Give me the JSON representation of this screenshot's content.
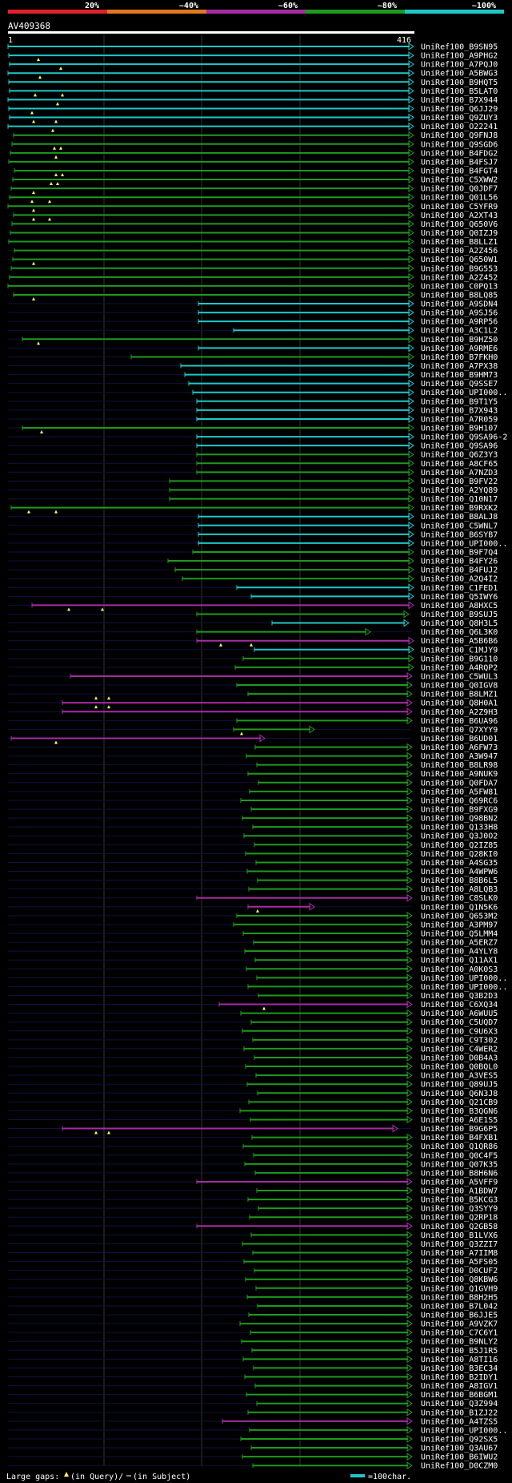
{
  "query_id": "AV409368",
  "scale": {
    "start": "1",
    "end": "416"
  },
  "identity_legend": [
    {
      "label": "20%",
      "color": "#e0202a"
    },
    {
      "label": "~40%",
      "color": "#e0781e"
    },
    {
      "label": "~60%",
      "color": "#a52ca5"
    },
    {
      "label": "~80%",
      "color": "#1e9a1e"
    },
    {
      "label": "~100%",
      "color": "#1ec8c8"
    }
  ],
  "footer": {
    "gaps_label": "Large gaps:",
    "query_gap_text": "(in Query)/",
    "subject_gap_text": "(in Subject)",
    "scale_text": "=100char."
  },
  "hits": [
    "UniRef100_B9SN95",
    "UniRef100_A9PHG2",
    "UniRef100_A7PQJ0",
    "UniRef100_A5BWG3",
    "UniRef100_B9HQT5",
    "UniRef100_B5LAT0",
    "UniRef100_B7X944",
    "UniRef100_Q6JJ29",
    "UniRef100_Q9ZUY3",
    "UniRef100_O22241",
    "UniRef100_Q9FNJ8",
    "UniRef100_Q9SGD6",
    "UniRef100_B4FDG2",
    "UniRef100_B4FSJ7",
    "UniRef100_B4FGT4",
    "UniRef100_C5XWW2",
    "UniRef100_Q0JDF7",
    "UniRef100_Q01L56",
    "UniRef100_C5YFR9",
    "UniRef100_A2XT43",
    "UniRef100_Q650V6",
    "UniRef100_Q0IZJ9",
    "UniRef100_B8LLZ1",
    "UniRef100_A2Z456",
    "UniRef100_Q650W1",
    "UniRef100_B9G553",
    "UniRef100_A2Z452",
    "UniRef100_C0PQ13",
    "UniRef100_B8LQ85",
    "UniRef100_A9SDN4",
    "UniRef100_A9SJ56",
    "UniRef100_A9RP56",
    "UniRef100_A3C1L2",
    "UniRef100_B9HZ50",
    "UniRef100_A9RME6",
    "UniRef100_B7FKH0",
    "UniRef100_A7PX38",
    "UniRef100_B9HM73",
    "UniRef100_Q9SSE7",
    "UniRef100_UPI000..",
    "UniRef100_B9T1Y5",
    "UniRef100_B7X943",
    "UniRef100_A7R059",
    "UniRef100_B9H107",
    "UniRef100_Q9SA96-2",
    "UniRef100_Q9SA96",
    "UniRef100_Q6Z3Y3",
    "UniRef100_A8CF65",
    "UniRef100_A7NZD3",
    "UniRef100_B9FV22",
    "UniRef100_A2YQ89",
    "UniRef100_Q10N17",
    "UniRef100_B9RXK2",
    "UniRef100_B8ALJ8",
    "UniRef100_C5WNL7",
    "UniRef100_B6SYB7",
    "UniRef100_UPI000..",
    "UniRef100_B9F7Q4",
    "UniRef100_B4FY26",
    "UniRef100_B4FUJ2",
    "UniRef100_A2Q4I2",
    "UniRef100_C1FED1",
    "UniRef100_Q5IWY6",
    "UniRef100_A8HXC5",
    "UniRef100_B9SUJ5",
    "UniRef100_Q8H3L5",
    "UniRef100_Q6L3K0",
    "UniRef100_A5B6B6",
    "UniRef100_C1MJY9",
    "UniRef100_B9G110",
    "UniRef100_A4RQP2",
    "UniRef100_C5WUL3",
    "UniRef100_Q0IGV8",
    "UniRef100_B8LMZ1",
    "UniRef100_Q8H0A1",
    "UniRef100_A2Z9H3",
    "UniRef100_B6UA96",
    "UniRef100_Q7XYY9",
    "UniRef100_B6UD01",
    "UniRef100_A6FW73",
    "UniRef100_A3W947",
    "UniRef100_B8LR98",
    "UniRef100_A9NUK9",
    "UniRef100_Q0FDA7",
    "UniRef100_A5FW81",
    "UniRef100_Q69RC6",
    "UniRef100_B9FXG9",
    "UniRef100_Q98BN2",
    "UniRef100_Q133H8",
    "UniRef100_Q3J0O2",
    "UniRef100_Q2IZ85",
    "UniRef100_Q28KI0",
    "UniRef100_A4SG35",
    "UniRef100_A4WPW6",
    "UniRef100_B8B6L5",
    "UniRef100_A8LQB3",
    "UniRef100_C8SLK0",
    "UniRef100_Q1N5K6",
    "UniRef100_Q653M2",
    "UniRef100_A3PM97",
    "UniRef100_Q5LMM4",
    "UniRef100_A5ERZ7",
    "UniRef100_A4YLY8",
    "UniRef100_Q11AX1",
    "UniRef100_A0K0S3",
    "UniRef100_UPI000..",
    "UniRef100_UPI000..",
    "UniRef100_Q3B2D3",
    "UniRef100_C6XQ34",
    "UniRef100_A6WUU5",
    "UniRef100_C5UQD7",
    "UniRef100_C9U6X3",
    "UniRef100_C9T302",
    "UniRef100_C4WER2",
    "UniRef100_D0B4A3",
    "UniRef100_Q0BQL0",
    "UniRef100_A3VES5",
    "UniRef100_Q89UJ5",
    "UniRef100_Q6N3J8",
    "UniRef100_Q21CB9",
    "UniRef100_B3QGN6",
    "UniRef100_A6E1S5",
    "UniRef100_B9G6P5",
    "UniRef100_B4FXB1",
    "UniRef100_Q1QR86",
    "UniRef100_Q0C4F5",
    "UniRef100_Q07K35",
    "UniRef100_B8H6N6",
    "UniRef100_A5VFF9",
    "UniRef100_A1BDW7",
    "UniRef100_B5KCG3",
    "UniRef100_Q3SYY9",
    "UniRef100_Q2RP18",
    "UniRef100_Q2GB58",
    "UniRef100_B1LVX6",
    "UniRef100_Q3ZZI7",
    "UniRef100_A7IIM8",
    "UniRef100_A5FS05",
    "UniRef100_D0CUF2",
    "UniRef100_Q8KBW6",
    "UniRef100_Q1GVH9",
    "UniRef100_B8H2H5",
    "UniRef100_B7L042",
    "UniRef100_B6JJE5",
    "UniRef100_A9VZK7",
    "UniRef100_C7C6Y1",
    "UniRef100_B9NLY2",
    "UniRef100_B5J1R5",
    "UniRef100_A8TI16",
    "UniRef100_B3EC34",
    "UniRef100_B2IDY1",
    "UniRef100_A8IGV1",
    "UniRef100_B6BGM1",
    "UniRef100_Q3Z994",
    "UniRef100_B1ZJ22",
    "UniRef100_A4TZS5",
    "UniRef100_UPI000..",
    "UniRef100_Q92SX5",
    "UniRef100_Q3AU67",
    "UniRef100_B6IWU2",
    "UniRef100_D0CZM0"
  ]
}
